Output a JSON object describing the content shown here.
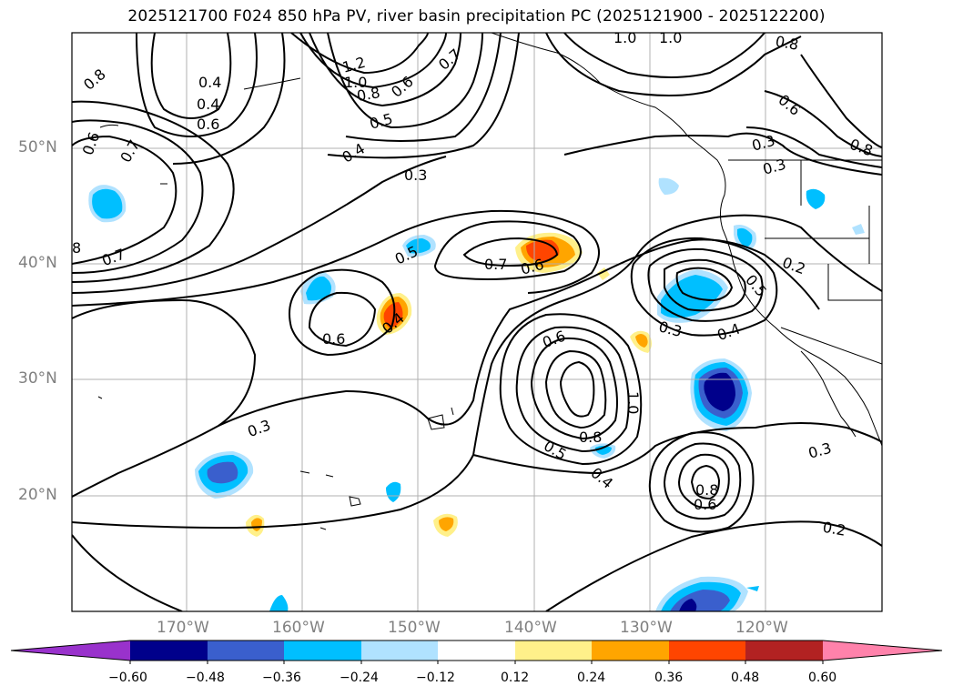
{
  "title": "2025121700 F024 850 hPa PV, river basin precipitation PC (2025121900 - 2025122200)",
  "lat_labels": [
    "50°N",
    "40°N",
    "30°N",
    "20°N"
  ],
  "lon_labels": [
    "170°W",
    "160°W",
    "150°W",
    "140°W",
    "130°W",
    "120°W"
  ],
  "colorbar": {
    "ticks": [
      "−0.60",
      "−0.48",
      "−0.36",
      "−0.24",
      "−0.12",
      "0.12",
      "0.24",
      "0.36",
      "0.48",
      "0.60"
    ],
    "colors": [
      "#9932cc",
      "#00008b",
      "#3a5fcd",
      "#00bfff",
      "#b0e2ff",
      "#ffffff",
      "#fff08a",
      "#ffa500",
      "#ff4500",
      "#b22222",
      "#ff82ab"
    ]
  },
  "contour_labels": [
    "0.8",
    "0.4",
    "0.4",
    "0.6",
    "0.6",
    "0.7",
    "8",
    "0.7",
    "1.2",
    "1.0",
    "0.8",
    "0.6",
    "0.5",
    "0.4",
    "0.3",
    "0.7",
    "1.0",
    "1.0",
    "0.8",
    "0.6",
    "0.3",
    "0.3",
    "0.8",
    "0.5",
    "0.7",
    "0.6",
    "0.6",
    "0.4",
    "0.2",
    "0.5",
    "0.3",
    "0.4",
    "0.6",
    "0.8",
    "1.0",
    "0.5",
    "0.4",
    "0.3",
    "0.8",
    "0.6",
    "0.3",
    "0.2"
  ]
}
